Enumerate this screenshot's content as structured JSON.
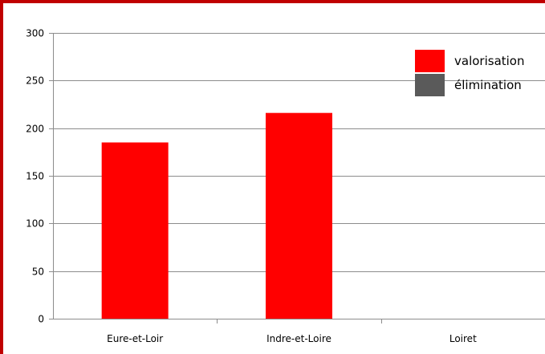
{
  "chart_data": {
    "type": "bar",
    "title": "",
    "xlabel": "",
    "ylabel": "",
    "categories": [
      "Eure-et-Loir",
      "Indre-et-Loire",
      "Loiret"
    ],
    "series": [
      {
        "name": "valorisation",
        "color": "#ff0000",
        "values": [
          185,
          216,
          0
        ]
      },
      {
        "name": "élimination",
        "color": "#5a5a5a",
        "values": [
          0,
          0,
          0
        ]
      }
    ],
    "ylim": [
      0,
      300
    ],
    "yticks": [
      0,
      50,
      100,
      150,
      200,
      250,
      300
    ],
    "grid": true,
    "legend_position": "top-right",
    "frame_color": "#c00000",
    "gridline_color": "#8c8c8c"
  }
}
